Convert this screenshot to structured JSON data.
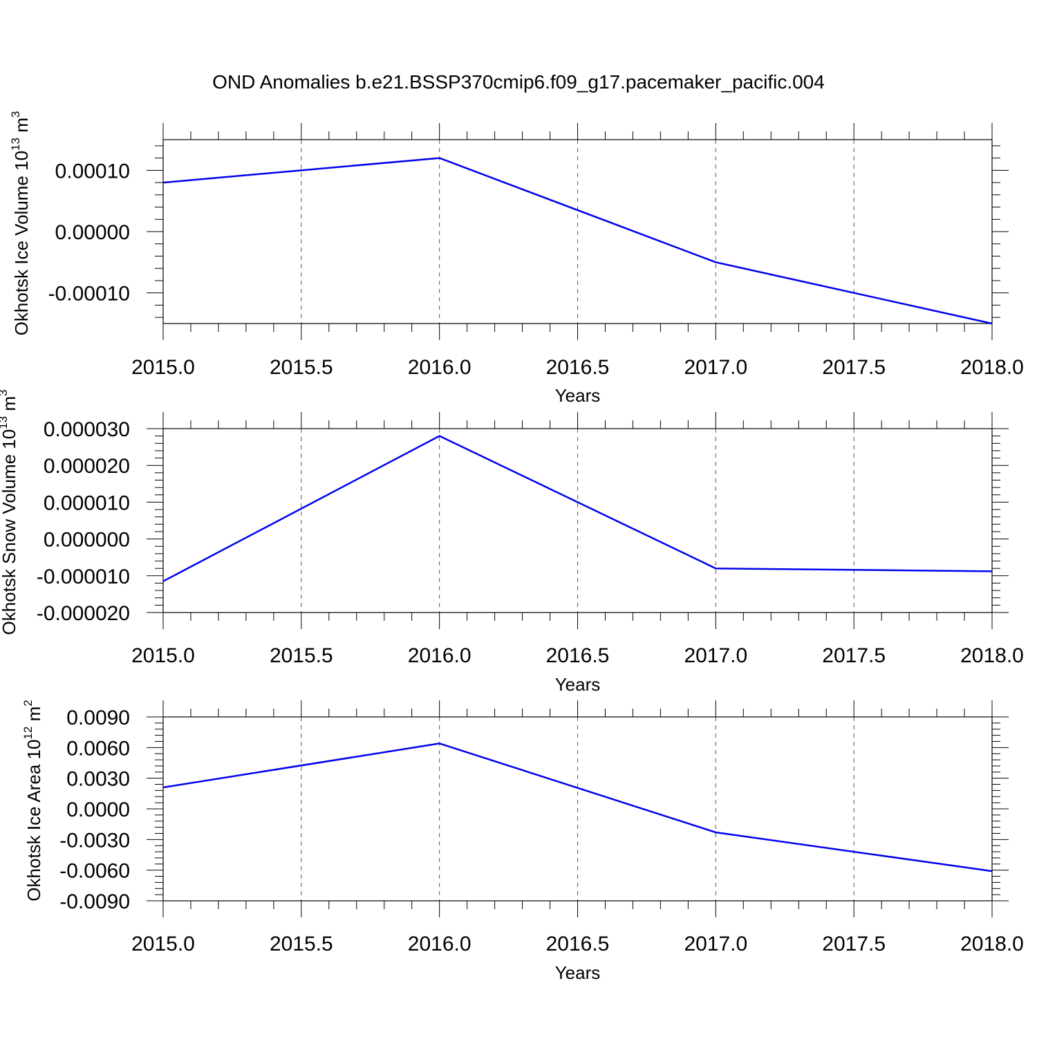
{
  "title": "OND Anomalies b.e21.BSSP370cmip6.f09_g17.pacemaker_pacific.004",
  "chart_data": [
    {
      "type": "line",
      "xlabel": "Years",
      "ylabel_main": "Okhotsk Ice Volume 10",
      "ylabel_exp": "13",
      "ylabel_unit": " m",
      "ylabel_unit_exp": "3",
      "x": [
        2015,
        2016,
        2017,
        2018
      ],
      "values": [
        8e-05,
        0.00012,
        -5e-05,
        -0.00015
      ],
      "xlim": [
        2015,
        2018
      ],
      "ylim": [
        -0.00015,
        0.00015
      ],
      "xticks": [
        2015.0,
        2015.5,
        2016.0,
        2016.5,
        2017.0,
        2017.5,
        2018.0
      ],
      "xtick_labels": [
        "2015.0",
        "2015.5",
        "2016.0",
        "2016.5",
        "2017.0",
        "2017.5",
        "2018.0"
      ],
      "yticks": [
        0.0001,
        0.0,
        -0.0001
      ],
      "ytick_labels": [
        "0.00010",
        "0.00000",
        "-0.00010"
      ],
      "grid": "vertical dashed",
      "color": "#0000ee"
    },
    {
      "type": "line",
      "xlabel": "Years",
      "ylabel_main": "Okhotsk Snow Volume 10",
      "ylabel_exp": "13",
      "ylabel_unit": " m",
      "ylabel_unit_exp": "3",
      "x": [
        2015,
        2016,
        2017,
        2018
      ],
      "values": [
        -1.15e-05,
        2.8e-05,
        -8e-06,
        -8.8e-06
      ],
      "xlim": [
        2015,
        2018
      ],
      "ylim": [
        -2e-05,
        3e-05
      ],
      "xticks": [
        2015.0,
        2015.5,
        2016.0,
        2016.5,
        2017.0,
        2017.5,
        2018.0
      ],
      "xtick_labels": [
        "2015.0",
        "2015.5",
        "2016.0",
        "2016.5",
        "2017.0",
        "2017.5",
        "2018.0"
      ],
      "yticks": [
        3e-05,
        2e-05,
        1e-05,
        0.0,
        -1e-05,
        -2e-05
      ],
      "ytick_labels": [
        "0.000030",
        "0.000020",
        "0.000010",
        "0.000000",
        "-0.000010",
        "-0.000020"
      ],
      "grid": "vertical dashed",
      "color": "#0000ee"
    },
    {
      "type": "line",
      "xlabel": "Years",
      "ylabel_main": "Okhotsk Ice Area 10",
      "ylabel_exp": "12",
      "ylabel_unit": " m",
      "ylabel_unit_exp": "2",
      "x": [
        2015,
        2016,
        2017,
        2018
      ],
      "values": [
        0.0021,
        0.0064,
        -0.0023,
        -0.0061
      ],
      "xlim": [
        2015,
        2018
      ],
      "ylim": [
        -0.009,
        0.009
      ],
      "xticks": [
        2015.0,
        2015.5,
        2016.0,
        2016.5,
        2017.0,
        2017.5,
        2018.0
      ],
      "xtick_labels": [
        "2015.0",
        "2015.5",
        "2016.0",
        "2016.5",
        "2017.0",
        "2017.5",
        "2018.0"
      ],
      "yticks": [
        0.009,
        0.006,
        0.003,
        0.0,
        -0.003,
        -0.006,
        -0.009
      ],
      "ytick_labels": [
        "0.0090",
        "0.0060",
        "0.0030",
        "0.0000",
        "-0.0030",
        "-0.0060",
        "-0.0090"
      ],
      "grid": "vertical dashed",
      "color": "#0000ee"
    }
  ]
}
